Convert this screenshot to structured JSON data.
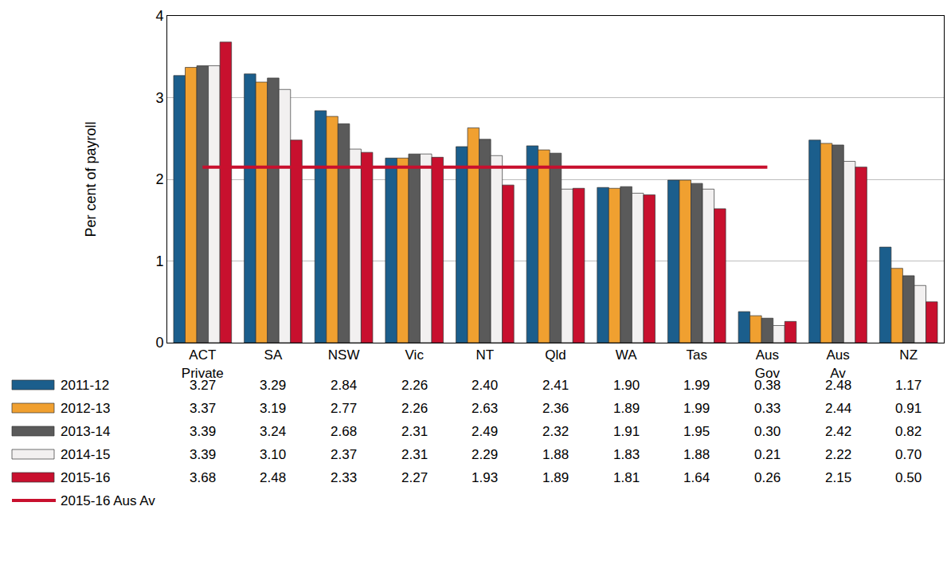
{
  "chart_data": {
    "type": "bar",
    "y_label": "Per cent of payroll",
    "categories": [
      "ACT Private",
      "SA",
      "NSW",
      "Vic",
      "NT",
      "Qld",
      "WA",
      "Tas",
      "Aus Gov",
      "Aus Av",
      "NZ"
    ],
    "series": [
      {
        "name": "2011-12",
        "color": "#1b5e8c",
        "values": [
          3.27,
          3.29,
          2.84,
          2.26,
          2.4,
          2.41,
          1.9,
          1.99,
          0.38,
          2.48,
          1.17
        ],
        "value_labels": [
          "3.27",
          "3.29",
          "2.84",
          "2.26",
          "2.40",
          "2.41",
          "1.90",
          "1.99",
          "0.38",
          "2.48",
          "1.17"
        ]
      },
      {
        "name": "2012-13",
        "color": "#f0a030",
        "values": [
          3.37,
          3.19,
          2.77,
          2.26,
          2.63,
          2.36,
          1.89,
          1.99,
          0.33,
          2.44,
          0.91
        ],
        "value_labels": [
          "3.37",
          "3.19",
          "2.77",
          "2.26",
          "2.63",
          "2.36",
          "1.89",
          "1.99",
          "0.33",
          "2.44",
          "0.91"
        ]
      },
      {
        "name": "2013-14",
        "color": "#5a5a5a",
        "values": [
          3.39,
          3.24,
          2.68,
          2.31,
          2.49,
          2.32,
          1.91,
          1.95,
          0.3,
          2.42,
          0.82
        ],
        "value_labels": [
          "3.39",
          "3.24",
          "2.68",
          "2.31",
          "2.49",
          "2.32",
          "1.91",
          "1.95",
          "0.30",
          "2.42",
          "0.82"
        ]
      },
      {
        "name": "2014-15",
        "color": "#f2f0f0",
        "values": [
          3.39,
          3.1,
          2.37,
          2.31,
          2.29,
          1.88,
          1.83,
          1.88,
          0.21,
          2.22,
          0.7
        ],
        "value_labels": [
          "3.39",
          "3.10",
          "2.37",
          "2.31",
          "2.29",
          "1.88",
          "1.83",
          "1.88",
          "0.21",
          "2.22",
          "0.70"
        ]
      },
      {
        "name": "2015-16",
        "color": "#c8102e",
        "values": [
          3.68,
          2.48,
          2.33,
          2.27,
          1.93,
          1.89,
          1.81,
          1.64,
          0.26,
          2.15,
          0.5
        ],
        "value_labels": [
          "3.68",
          "2.48",
          "2.33",
          "2.27",
          "1.93",
          "1.89",
          "1.81",
          "1.64",
          "0.26",
          "2.15",
          "0.50"
        ]
      },
      {
        "name": "2015-16 Aus Av",
        "type": "line",
        "color": "#c8102e",
        "values": [
          2.15,
          2.15,
          2.15,
          2.15,
          2.15,
          2.15,
          2.15,
          2.15,
          2.15,
          null,
          null
        ]
      }
    ],
    "ylim": [
      0,
      4
    ],
    "yticks": [
      0,
      1,
      2,
      3,
      4
    ],
    "grid": true
  }
}
